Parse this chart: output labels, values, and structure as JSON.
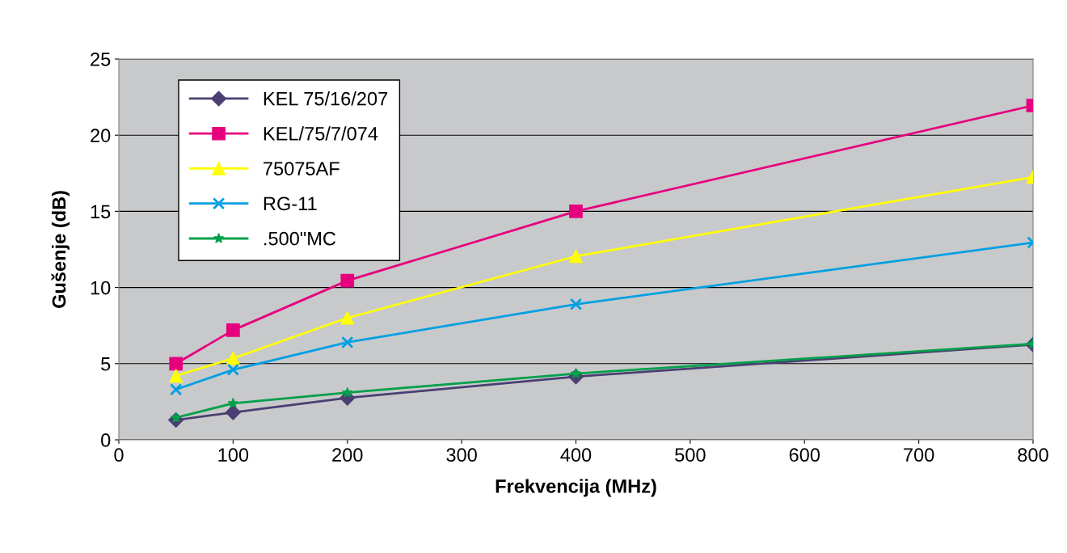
{
  "chart_data": {
    "type": "line",
    "xlabel": "Frekvencija (MHz)",
    "ylabel": "Gušenje (dB)",
    "x": [
      50,
      100,
      200,
      400,
      800
    ],
    "series": [
      {
        "name": "KEL 75/16/207",
        "color": "#4b3f72",
        "marker": "diamond",
        "values": [
          1.3,
          1.8,
          2.75,
          4.15,
          6.25
        ]
      },
      {
        "name": "KEL/75/7/074",
        "color": "#e6007e",
        "marker": "square",
        "values": [
          5.0,
          7.2,
          10.45,
          15.0,
          21.95
        ]
      },
      {
        "name": "75075AF",
        "color": "#ffff00",
        "marker": "triangle",
        "values": [
          4.2,
          5.35,
          8.0,
          12.05,
          17.25
        ]
      },
      {
        "name": "RG-11",
        "color": "#00a0e3",
        "marker": "cross",
        "values": [
          3.3,
          4.6,
          6.4,
          8.9,
          12.95
        ]
      },
      {
        "name": ".500\"MC",
        "color": "#00a04a",
        "marker": "star",
        "values": [
          1.45,
          2.4,
          3.1,
          4.35,
          6.3
        ]
      }
    ],
    "xlim": [
      0,
      800
    ],
    "xticks": [
      0,
      100,
      200,
      300,
      400,
      500,
      600,
      700,
      800
    ],
    "ylim": [
      0,
      25
    ],
    "yticks": [
      0,
      5,
      10,
      15,
      20,
      25
    ],
    "grid": "y",
    "legend": "top left",
    "line_style": "solid"
  }
}
